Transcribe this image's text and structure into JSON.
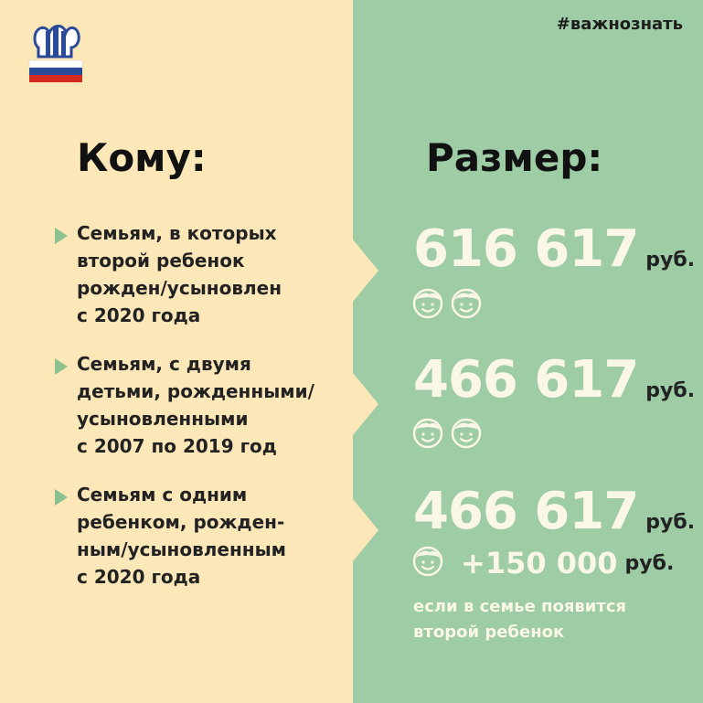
{
  "header": {
    "hashtag": "#важнознать"
  },
  "headings": {
    "who": "Кому:",
    "amount": "Размер:"
  },
  "rows": [
    {
      "lines": [
        "Семьям, в которых",
        "второй ребенок",
        "рожден/усыновлен",
        "с 2020 года"
      ],
      "amount": "616 617",
      "currency": "руб.",
      "children": 2
    },
    {
      "lines": [
        "Семьям, с двумя",
        "детьми, рожденными/",
        "усыновленными",
        "с 2007 по 2019 год"
      ],
      "amount": "466 617",
      "currency": "руб.",
      "children": 2
    },
    {
      "lines": [
        "Семьям с одним",
        "ребенком, рожден-",
        "ным/усыновленным",
        "с 2020 года"
      ],
      "amount": "466 617",
      "currency": "руб.",
      "children": 1
    }
  ],
  "bonus": {
    "amount": "+150 000",
    "currency": "руб.",
    "note_lines": [
      "если в семье появится",
      "второй ребенок"
    ]
  },
  "colors": {
    "left_bg": "#fce7b8",
    "right_bg": "#9dcca5",
    "accent_text": "#fbf7e6",
    "bullet": "#8cc08f"
  },
  "icons": {
    "logo": "pfr-logo",
    "child": "child-face-icon",
    "bullet": "bullet-triangle-icon"
  }
}
